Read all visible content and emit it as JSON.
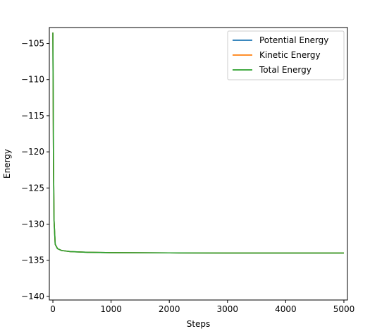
{
  "chart_data": {
    "type": "line",
    "title": "",
    "xlabel": "Steps",
    "ylabel": "Energy",
    "xlim": [
      -61,
      5061
    ],
    "ylim": [
      -140.5,
      -102.8
    ],
    "xticks": [
      0,
      1000,
      2000,
      3000,
      4000,
      5000
    ],
    "yticks": [
      -140,
      -135,
      -130,
      -125,
      -120,
      -115,
      -110,
      -105
    ],
    "xtick_labels": [
      "0",
      "1000",
      "2000",
      "3000",
      "4000",
      "5000"
    ],
    "ytick_labels": [
      "−140",
      "−135",
      "−130",
      "−125",
      "−120",
      "−115",
      "−110",
      "−105"
    ],
    "grid": false,
    "legend_position": "top-right",
    "series": [
      {
        "name": "Potential Energy",
        "color": "#1f77b4",
        "x": [
          0,
          5,
          10,
          20,
          40,
          80,
          150,
          300,
          600,
          1000,
          2000,
          3000,
          4000,
          5000
        ],
        "y": [
          -103.5,
          -112.0,
          -121.0,
          -129.5,
          -132.8,
          -133.4,
          -133.65,
          -133.8,
          -133.9,
          -133.95,
          -133.98,
          -134.0,
          -134.0,
          -134.0
        ]
      },
      {
        "name": "Kinetic Energy",
        "color": "#ff7f0e",
        "x": [
          0,
          5,
          10,
          20,
          40,
          80,
          150,
          300,
          600,
          1000,
          2000,
          3000,
          4000,
          5000
        ],
        "y": [
          -103.5,
          -112.0,
          -121.0,
          -129.5,
          -132.8,
          -133.4,
          -133.65,
          -133.8,
          -133.9,
          -133.95,
          -133.98,
          -134.0,
          -134.0,
          -134.0
        ]
      },
      {
        "name": "Total Energy",
        "color": "#2ca02c",
        "x": [
          0,
          5,
          10,
          20,
          40,
          80,
          150,
          300,
          600,
          1000,
          2000,
          3000,
          4000,
          5000
        ],
        "y": [
          -103.5,
          -112.0,
          -121.0,
          -129.5,
          -132.8,
          -133.4,
          -133.65,
          -133.8,
          -133.9,
          -133.95,
          -133.98,
          -134.0,
          -134.0,
          -134.0
        ]
      }
    ]
  }
}
